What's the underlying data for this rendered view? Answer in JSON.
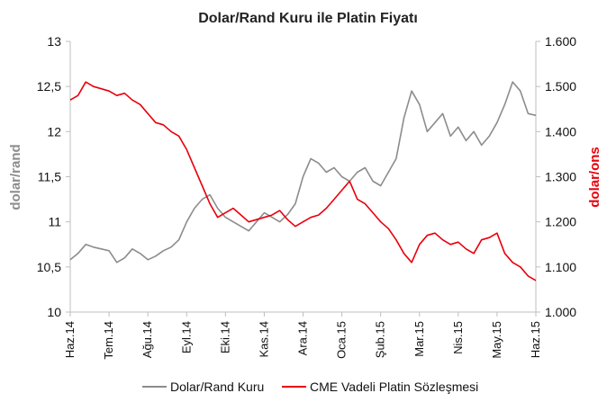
{
  "chart_data": {
    "type": "line",
    "title": "Dolar/Rand Kuru ile Platin Fiyatı",
    "ylabel_left": "dolar/rand",
    "ylabel_right": "dolar/ons",
    "ylim_left": [
      10,
      13
    ],
    "ylim_right": [
      1000,
      1600
    ],
    "yticks_left": [
      "10",
      "10,5",
      "11",
      "11,5",
      "12",
      "12,5",
      "13"
    ],
    "yticks_right": [
      "1.000",
      "1.100",
      "1.200",
      "1.300",
      "1.400",
      "1.500",
      "1.600"
    ],
    "x_labels": [
      "Haz.14",
      "Tem.14",
      "Ağu.14",
      "Eyl.14",
      "Eki.14",
      "Kas.14",
      "Ara.14",
      "Oca.15",
      "Şub.15",
      "Mar.15",
      "Nis.15",
      "May.15",
      "Haz.15"
    ],
    "grid": false,
    "legend_position": "bottom",
    "colors": {
      "rand": "#8c8c8c",
      "platinum": "#e8000b",
      "axis": "#bfbfbf"
    },
    "series": [
      {
        "name": "Dolar/Rand Kuru",
        "axis": "left",
        "color": "#8c8c8c",
        "x": [
          0,
          0.2,
          0.4,
          0.6,
          0.8,
          1.0,
          1.2,
          1.4,
          1.6,
          1.8,
          2.0,
          2.2,
          2.4,
          2.6,
          2.8,
          3.0,
          3.2,
          3.4,
          3.6,
          3.8,
          4.0,
          4.2,
          4.4,
          4.6,
          4.8,
          5.0,
          5.2,
          5.4,
          5.6,
          5.8,
          6.0,
          6.2,
          6.4,
          6.6,
          6.8,
          7.0,
          7.2,
          7.4,
          7.6,
          7.8,
          8.0,
          8.2,
          8.4,
          8.6,
          8.8,
          9.0,
          9.2,
          9.4,
          9.6,
          9.8,
          10.0,
          10.2,
          10.4,
          10.6,
          10.8,
          11.0,
          11.2,
          11.4,
          11.6,
          11.8,
          12.0
        ],
        "values": [
          10.58,
          10.65,
          10.75,
          10.72,
          10.7,
          10.68,
          10.55,
          10.6,
          10.7,
          10.65,
          10.58,
          10.62,
          10.68,
          10.72,
          10.8,
          11.0,
          11.15,
          11.25,
          11.3,
          11.15,
          11.05,
          11.0,
          10.95,
          10.9,
          11.0,
          11.1,
          11.05,
          11.0,
          11.08,
          11.2,
          11.5,
          11.7,
          11.65,
          11.55,
          11.6,
          11.5,
          11.45,
          11.55,
          11.6,
          11.45,
          11.4,
          11.55,
          11.7,
          12.15,
          12.45,
          12.3,
          12.0,
          12.1,
          12.2,
          11.95,
          12.05,
          11.9,
          12.0,
          11.85,
          11.95,
          12.1,
          12.3,
          12.55,
          12.45,
          12.2,
          12.18
        ]
      },
      {
        "name": "CME Vadeli Platin Sözleşmesi",
        "axis": "right",
        "color": "#e8000b",
        "x": [
          0,
          0.2,
          0.4,
          0.6,
          0.8,
          1.0,
          1.2,
          1.4,
          1.6,
          1.8,
          2.0,
          2.2,
          2.4,
          2.6,
          2.8,
          3.0,
          3.2,
          3.4,
          3.6,
          3.8,
          4.0,
          4.2,
          4.4,
          4.6,
          4.8,
          5.0,
          5.2,
          5.4,
          5.6,
          5.8,
          6.0,
          6.2,
          6.4,
          6.6,
          6.8,
          7.0,
          7.2,
          7.4,
          7.6,
          7.8,
          8.0,
          8.2,
          8.4,
          8.6,
          8.8,
          9.0,
          9.2,
          9.4,
          9.6,
          9.8,
          10.0,
          10.2,
          10.4,
          10.6,
          10.8,
          11.0,
          11.2,
          11.4,
          11.6,
          11.8,
          12.0
        ],
        "values": [
          1470,
          1480,
          1510,
          1500,
          1495,
          1490,
          1480,
          1485,
          1470,
          1460,
          1440,
          1420,
          1415,
          1400,
          1390,
          1360,
          1320,
          1280,
          1240,
          1210,
          1220,
          1230,
          1215,
          1200,
          1205,
          1210,
          1215,
          1225,
          1205,
          1190,
          1200,
          1210,
          1215,
          1230,
          1250,
          1270,
          1290,
          1250,
          1240,
          1220,
          1200,
          1185,
          1160,
          1130,
          1110,
          1150,
          1170,
          1175,
          1160,
          1150,
          1155,
          1140,
          1130,
          1160,
          1165,
          1175,
          1130,
          1110,
          1100,
          1080,
          1070
        ]
      }
    ]
  }
}
